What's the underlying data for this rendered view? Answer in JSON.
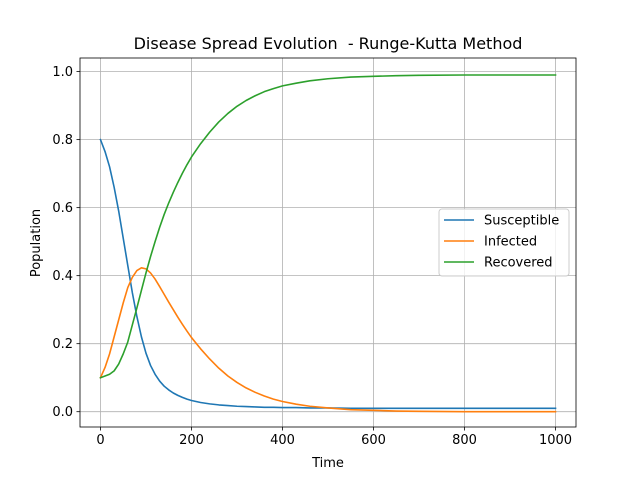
{
  "chart_data": {
    "type": "line",
    "title": "Disease Spread Evolution  - Runge-Kutta Method",
    "xlabel": "Time",
    "ylabel": "Population",
    "xlim": [
      -45,
      1045
    ],
    "ylim": [
      -0.045,
      1.04
    ],
    "xticks": [
      0,
      200,
      400,
      600,
      800,
      1000
    ],
    "xtick_labels": [
      "0",
      "200",
      "400",
      "600",
      "800",
      "1000"
    ],
    "yticks": [
      0.0,
      0.2,
      0.4,
      0.6,
      0.8,
      1.0
    ],
    "ytick_labels": [
      "0.0",
      "0.2",
      "0.4",
      "0.6",
      "0.8",
      "1.0"
    ],
    "grid": true,
    "legend_position": "center-right",
    "x": [
      0,
      10,
      20,
      30,
      40,
      50,
      60,
      70,
      80,
      90,
      100,
      110,
      120,
      130,
      140,
      150,
      160,
      170,
      180,
      190,
      200,
      220,
      240,
      260,
      280,
      300,
      320,
      340,
      360,
      380,
      400,
      430,
      460,
      500,
      550,
      600,
      650,
      700,
      800,
      900,
      1000
    ],
    "series": [
      {
        "name": "Susceptible",
        "color": "#1f77b4",
        "values": [
          0.8,
          0.765,
          0.72,
          0.66,
          0.59,
          0.51,
          0.43,
          0.35,
          0.28,
          0.22,
          0.172,
          0.136,
          0.11,
          0.09,
          0.075,
          0.064,
          0.055,
          0.048,
          0.042,
          0.037,
          0.033,
          0.027,
          0.023,
          0.02,
          0.018,
          0.016,
          0.015,
          0.014,
          0.013,
          0.013,
          0.012,
          0.012,
          0.011,
          0.011,
          0.01,
          0.01,
          0.01,
          0.01,
          0.01,
          0.01,
          0.01
        ]
      },
      {
        "name": "Infected",
        "color": "#ff7f0e",
        "values": [
          0.1,
          0.13,
          0.17,
          0.22,
          0.27,
          0.32,
          0.365,
          0.395,
          0.415,
          0.423,
          0.42,
          0.408,
          0.39,
          0.368,
          0.345,
          0.322,
          0.3,
          0.278,
          0.257,
          0.237,
          0.218,
          0.185,
          0.155,
          0.128,
          0.105,
          0.086,
          0.07,
          0.057,
          0.046,
          0.037,
          0.03,
          0.022,
          0.016,
          0.011,
          0.006,
          0.004,
          0.002,
          0.001,
          0.0,
          0.0,
          0.0
        ]
      },
      {
        "name": "Recovered",
        "color": "#2ca02c",
        "values": [
          0.1,
          0.105,
          0.11,
          0.12,
          0.14,
          0.17,
          0.205,
          0.255,
          0.305,
          0.357,
          0.408,
          0.456,
          0.5,
          0.542,
          0.58,
          0.614,
          0.645,
          0.674,
          0.701,
          0.726,
          0.749,
          0.788,
          0.822,
          0.852,
          0.877,
          0.898,
          0.915,
          0.929,
          0.941,
          0.95,
          0.958,
          0.966,
          0.973,
          0.979,
          0.984,
          0.986,
          0.988,
          0.989,
          0.99,
          0.99,
          0.99
        ]
      }
    ]
  }
}
